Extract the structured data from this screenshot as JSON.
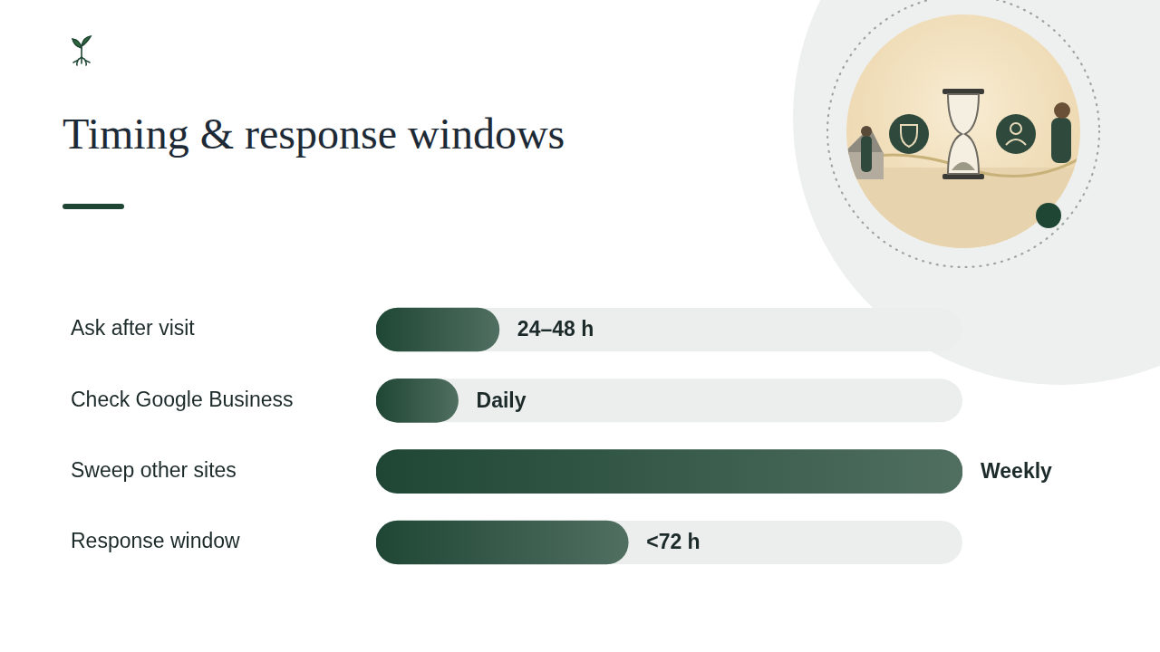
{
  "chart_data": {
    "type": "bar",
    "orientation": "horizontal",
    "title": "Timing & response windows",
    "categories": [
      "Ask after visit",
      "Check Google Business",
      "Sweep other sites",
      "Response window"
    ],
    "values": [
      21,
      14,
      100,
      43
    ],
    "annotations": [
      "24–48 h",
      "Daily",
      "Weekly",
      "<72 h"
    ],
    "color": "#1f4634",
    "xlim": [
      0,
      100
    ],
    "grid": false,
    "tick_labels": "y",
    "data_labels": false
  }
}
